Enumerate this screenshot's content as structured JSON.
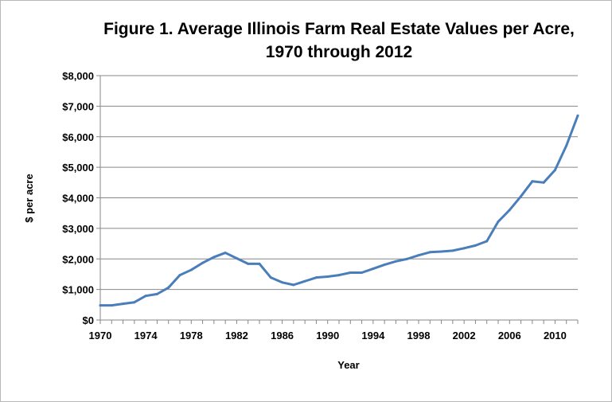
{
  "chart_data": {
    "type": "line",
    "title_line1": "Figure 1.  Average Illinois Farm Real Estate Values per Acre,",
    "title_line2": "1970 through 2012",
    "xlabel": "Year",
    "ylabel": "$ per acre",
    "ylim": [
      0,
      8000
    ],
    "xlim": [
      1970,
      2012
    ],
    "y_ticks": [
      0,
      1000,
      2000,
      3000,
      4000,
      5000,
      6000,
      7000,
      8000
    ],
    "y_tick_labels": [
      "$0",
      "$1,000",
      "$2,000",
      "$3,000",
      "$4,000",
      "$5,000",
      "$6,000",
      "$7,000",
      "$8,000"
    ],
    "x_tick_labels": [
      "1970",
      "1974",
      "1978",
      "1982",
      "1986",
      "1990",
      "1994",
      "1998",
      "2002",
      "2006",
      "2010"
    ],
    "grid": "horizontal",
    "line_color": "#4a7ebb",
    "series": [
      {
        "x": [
          1970,
          1971,
          1972,
          1973,
          1974,
          1975,
          1976,
          1977,
          1978,
          1979,
          1980,
          1981,
          1982,
          1983,
          1984,
          1985,
          1986,
          1987,
          1988,
          1989,
          1990,
          1991,
          1992,
          1993,
          1994,
          1995,
          1996,
          1997,
          1998,
          1999,
          2000,
          2001,
          2002,
          2003,
          2004,
          2005,
          2006,
          2007,
          2008,
          2009,
          2010,
          2011,
          2012
        ],
        "values": [
          480,
          480,
          530,
          580,
          790,
          850,
          1060,
          1470,
          1640,
          1870,
          2060,
          2200,
          2020,
          1840,
          1840,
          1390,
          1230,
          1150,
          1270,
          1390,
          1420,
          1470,
          1550,
          1550,
          1680,
          1810,
          1920,
          2000,
          2120,
          2220,
          2240,
          2270,
          2350,
          2440,
          2580,
          3220,
          3600,
          4050,
          4540,
          4500,
          4910,
          5710,
          6690
        ]
      }
    ]
  }
}
